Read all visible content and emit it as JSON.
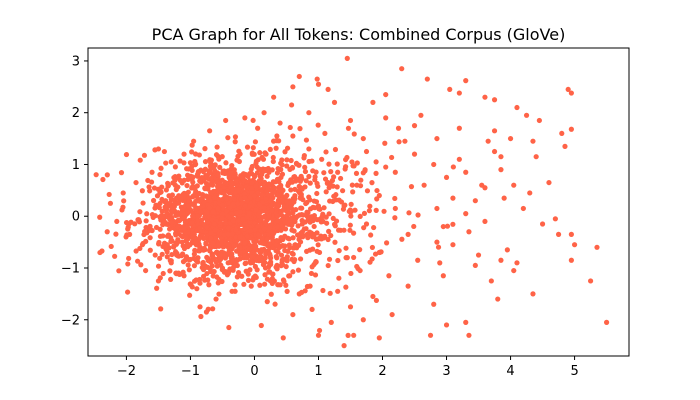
{
  "chart_data": {
    "type": "scatter",
    "title": "PCA Graph for All Tokens: Combined Corpus (GloVe)",
    "xlabel": "",
    "ylabel": "",
    "xlim": [
      -2.6,
      5.85
    ],
    "ylim": [
      -2.7,
      3.25
    ],
    "xticks": [
      -2,
      -1,
      0,
      1,
      2,
      3,
      4,
      5
    ],
    "yticks": [
      -2,
      -1,
      0,
      1,
      2,
      3
    ],
    "grid": false,
    "legend": "none",
    "marker_color": "#ff6347",
    "series": [
      {
        "points": [
          [
            1.45,
            3.05
          ],
          [
            2.3,
            2.85
          ],
          [
            0.7,
            2.7
          ],
          [
            0.98,
            2.65
          ],
          [
            2.7,
            2.65
          ],
          [
            3.3,
            2.62
          ],
          [
            0.6,
            2.5
          ],
          [
            1.0,
            2.55
          ],
          [
            3.05,
            2.45
          ],
          [
            3.2,
            2.38
          ],
          [
            3.6,
            2.3
          ],
          [
            3.75,
            2.25
          ],
          [
            4.9,
            2.45
          ],
          [
            4.95,
            2.38
          ],
          [
            0.3,
            2.3
          ],
          [
            0.58,
            2.15
          ],
          [
            1.25,
            2.2
          ],
          [
            1.85,
            2.2
          ],
          [
            4.1,
            2.1
          ],
          [
            4.25,
            1.95
          ],
          [
            4.45,
            1.85
          ],
          [
            4.95,
            1.68
          ],
          [
            0.85,
            2.0
          ],
          [
            1.5,
            1.85
          ],
          [
            2.05,
            1.9
          ],
          [
            2.25,
            1.7
          ],
          [
            2.5,
            1.75
          ],
          [
            3.2,
            1.7
          ],
          [
            3.75,
            1.65
          ],
          [
            4.35,
            1.45
          ],
          [
            4.85,
            1.35
          ],
          [
            4.8,
            1.6
          ],
          [
            0.4,
            1.8
          ],
          [
            1.1,
            1.6
          ],
          [
            1.7,
            1.5
          ],
          [
            2.35,
            1.45
          ],
          [
            2.85,
            1.5
          ],
          [
            3.65,
            1.45
          ],
          [
            4.0,
            1.5
          ],
          [
            4.4,
            1.15
          ],
          [
            3.75,
            1.25
          ],
          [
            3.2,
            1.1
          ],
          [
            2.8,
            1.0
          ],
          [
            2.5,
            1.2
          ],
          [
            1.9,
            1.05
          ],
          [
            3.3,
            0.85
          ],
          [
            3.85,
            0.9
          ],
          [
            3.0,
            0.75
          ],
          [
            3.6,
            0.55
          ],
          [
            4.05,
            0.6
          ],
          [
            4.3,
            0.45
          ],
          [
            2.2,
            0.85
          ],
          [
            2.65,
            0.6
          ],
          [
            3.1,
            0.35
          ],
          [
            3.45,
            0.3
          ],
          [
            3.9,
            0.35
          ],
          [
            4.2,
            0.15
          ],
          [
            2.85,
            0.15
          ],
          [
            3.3,
            0.05
          ],
          [
            3.6,
            -0.1
          ],
          [
            3.35,
            -0.3
          ],
          [
            3.1,
            -0.55
          ],
          [
            3.5,
            -0.75
          ],
          [
            3.85,
            -0.85
          ],
          [
            4.05,
            -1.05
          ],
          [
            3.95,
            -0.65
          ],
          [
            4.1,
            -0.9
          ],
          [
            3.7,
            -1.25
          ],
          [
            4.35,
            -1.5
          ],
          [
            3.8,
            -1.6
          ],
          [
            2.85,
            -0.5
          ],
          [
            2.55,
            -0.85
          ],
          [
            2.95,
            -1.15
          ],
          [
            2.4,
            -1.35
          ],
          [
            2.8,
            -1.7
          ],
          [
            3.0,
            -2.1
          ],
          [
            3.3,
            -2.05
          ],
          [
            3.35,
            -2.3
          ],
          [
            2.75,
            -2.3
          ],
          [
            3.45,
            -0.95
          ],
          [
            4.75,
            -0.35
          ],
          [
            4.95,
            -0.35
          ],
          [
            5.0,
            -0.55
          ],
          [
            4.95,
            -0.85
          ],
          [
            5.35,
            -0.6
          ],
          [
            5.25,
            -1.25
          ],
          [
            5.5,
            -2.05
          ],
          [
            4.5,
            -0.15
          ],
          [
            4.7,
            -0.05
          ],
          [
            1.4,
            -2.5
          ],
          [
            1.55,
            -2.3
          ],
          [
            1.95,
            -2.35
          ],
          [
            1.0,
            -2.3
          ],
          [
            0.45,
            -2.35
          ],
          [
            -0.4,
            -2.15
          ],
          [
            -0.75,
            -1.85
          ],
          [
            1.2,
            -2.05
          ],
          [
            1.7,
            -2.0
          ],
          [
            2.15,
            -1.9
          ],
          [
            1.5,
            -1.75
          ],
          [
            0.9,
            -1.8
          ],
          [
            1.85,
            -1.55
          ],
          [
            1.3,
            -1.45
          ],
          [
            0.7,
            -1.5
          ],
          [
            2.1,
            -1.15
          ],
          [
            1.65,
            -1.05
          ],
          [
            1.95,
            -0.7
          ],
          [
            2.4,
            -0.35
          ],
          [
            2.2,
            0.15
          ],
          [
            1.95,
            0.4
          ],
          [
            1.6,
            0.6
          ],
          [
            1.3,
            0.85
          ],
          [
            1.05,
            1.1
          ],
          [
            0.85,
            1.3
          ],
          [
            0.6,
            1.55
          ],
          [
            1.75,
            1.25
          ],
          [
            2.05,
            0.95
          ],
          [
            1.4,
            0.2
          ],
          [
            1.75,
            -0.15
          ],
          [
            1.15,
            -0.45
          ],
          [
            1.45,
            -0.8
          ],
          [
            0.95,
            -0.9
          ],
          [
            0.55,
            -1.15
          ],
          [
            0.25,
            -1.25
          ],
          [
            -0.05,
            -1.35
          ],
          [
            -0.35,
            -1.45
          ],
          [
            -0.6,
            -1.6
          ],
          [
            -0.9,
            -1.4
          ],
          [
            -1.1,
            -1.15
          ],
          [
            -1.3,
            -0.9
          ],
          [
            -1.55,
            -0.75
          ],
          [
            -1.75,
            -0.55
          ],
          [
            -1.95,
            -0.35
          ],
          [
            -2.15,
            -0.1
          ],
          [
            -2.25,
            0.25
          ],
          [
            -2.05,
            0.45
          ],
          [
            -1.85,
            0.65
          ],
          [
            -1.6,
            0.85
          ],
          [
            -1.5,
            1.3
          ],
          [
            -1.3,
            1.05
          ],
          [
            -1.1,
            1.2
          ],
          [
            -0.95,
            1.45
          ],
          [
            -0.7,
            1.65
          ],
          [
            -0.45,
            1.85
          ],
          [
            -0.15,
            1.9
          ],
          [
            0.15,
            2.0
          ],
          [
            0.05,
            1.7
          ],
          [
            0.35,
            1.55
          ],
          [
            -2.3,
            -0.3
          ],
          [
            -1.7,
            -1.05
          ],
          [
            -1.5,
            -1.25
          ],
          [
            -0.85,
            -1.75
          ],
          [
            0.2,
            -1.65
          ],
          [
            0.6,
            -1.9
          ],
          [
            2.95,
            -0.2
          ],
          [
            3.55,
            0.6
          ],
          [
            2.6,
            1.95
          ],
          [
            2.05,
            2.35
          ],
          [
            1.15,
            2.45
          ],
          [
            3.85,
            1.15
          ],
          [
            4.6,
            0.65
          ]
        ],
        "dense_cluster": {
          "center": [
            -0.35,
            0.0
          ],
          "spread": [
            0.55,
            0.5
          ],
          "count": 1600
        },
        "halo": {
          "center": [
            0.1,
            -0.05
          ],
          "spread": [
            1.0,
            0.75
          ],
          "count": 700
        }
      }
    ]
  }
}
